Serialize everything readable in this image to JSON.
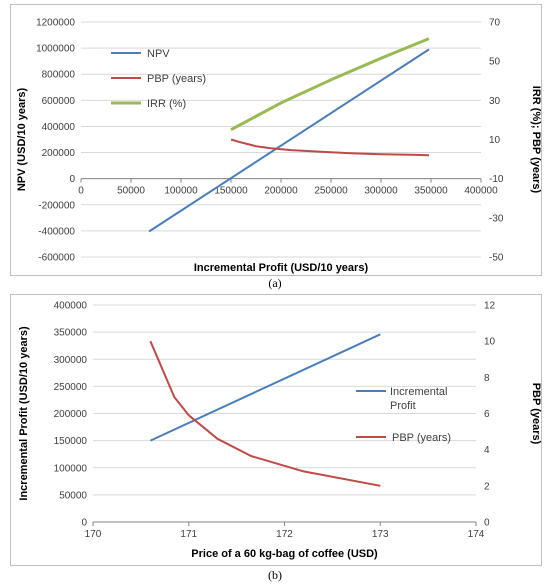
{
  "chart_data": [
    {
      "type": "line",
      "panel": "a",
      "xlabel": "Incremental Profit (USD/10 years)",
      "ylabel": "NPV (USD/10 years)",
      "y2label": "IRR (%); PBP (years)",
      "xlim": [
        0,
        400000
      ],
      "ylim": [
        -600000,
        1200000
      ],
      "y2lim": [
        -50,
        70
      ],
      "x_ticks": [
        "0",
        "50000",
        "100000",
        "150000",
        "200000",
        "250000",
        "300000",
        "350000",
        "400000"
      ],
      "y_ticks": [
        "-600000",
        "-400000",
        "-200000",
        "0",
        "200000",
        "400000",
        "600000",
        "800000",
        "1000000",
        "1200000"
      ],
      "y2_ticks": [
        "-50",
        "-30",
        "-10",
        "10",
        "30",
        "50",
        "70"
      ],
      "legend_position": "top-left",
      "series": [
        {
          "name": "NPV",
          "axis": "left",
          "color": "#4a7ebb",
          "x": [
            68000,
            348000
          ],
          "y": [
            -405000,
            990000
          ]
        },
        {
          "name": "PBP (years)",
          "axis": "right",
          "color": "#be4b48",
          "x": [
            150000,
            160000,
            175000,
            190000,
            210000,
            240000,
            270000,
            300000,
            330000,
            348000
          ],
          "y": [
            10,
            8.5,
            6.6,
            5.5,
            4.6,
            3.7,
            3.0,
            2.5,
            2.2,
            2.0
          ]
        },
        {
          "name": "IRR (%)",
          "axis": "right",
          "color": "#98b954",
          "x": [
            150000,
            200000,
            250000,
            300000,
            348000
          ],
          "y": [
            15,
            28.7,
            40.5,
            51.5,
            61.5
          ]
        }
      ]
    },
    {
      "type": "line",
      "panel": "b",
      "xlabel": "Price of a 60 kg-bag of coffee (USD)",
      "ylabel": "Incremental Profit (USD/10 years)",
      "y2label": "PBP (years)",
      "xlim": [
        170,
        174
      ],
      "ylim": [
        0,
        400000
      ],
      "y2lim": [
        0,
        12
      ],
      "x_ticks": [
        "170",
        "171",
        "172",
        "173",
        "174"
      ],
      "y_ticks": [
        "0",
        "50000",
        "100000",
        "150000",
        "200000",
        "250000",
        "300000",
        "350000",
        "400000"
      ],
      "y2_ticks": [
        "0",
        "2",
        "4",
        "6",
        "8",
        "10",
        "12"
      ],
      "legend_position": "right",
      "series": [
        {
          "name": "Incremental Profit",
          "axis": "left",
          "color": "#4a7ebb",
          "x": [
            170.6,
            173.0
          ],
          "y": [
            150000,
            346000
          ]
        },
        {
          "name": "PBP (years)",
          "axis": "right",
          "color": "#be4b48",
          "x": [
            170.6,
            170.85,
            171.0,
            171.3,
            171.65,
            172.2,
            173.0
          ],
          "y": [
            10.0,
            6.9,
            5.9,
            4.6,
            3.65,
            2.8,
            2.0
          ]
        }
      ]
    }
  ],
  "captions": {
    "a": "(a)",
    "b": "(b)"
  }
}
